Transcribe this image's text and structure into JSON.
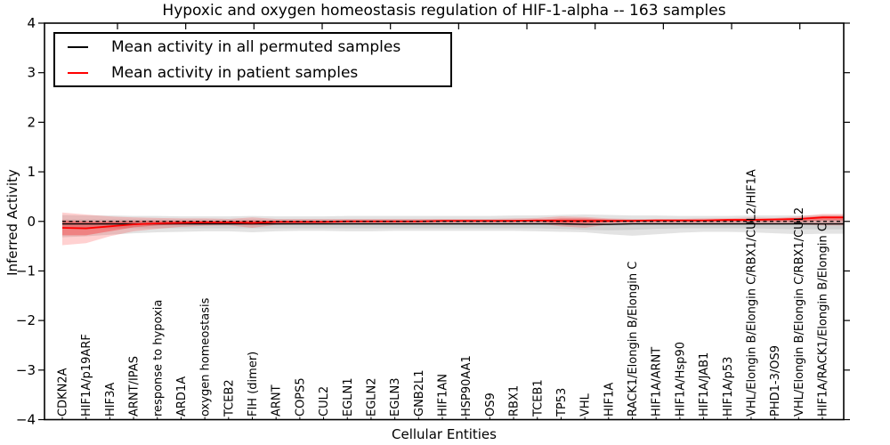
{
  "title": "Hypoxic and oxygen homeostasis regulation of HIF-1-alpha -- 163 samples",
  "legend": {
    "items": [
      {
        "label": "Mean activity in all permuted samples",
        "color": "#000000"
      },
      {
        "label": "Mean activity in patient samples",
        "color": "#ff0000"
      }
    ]
  },
  "chart_data": {
    "type": "line",
    "title": "Hypoxic and oxygen homeostasis regulation of HIF-1-alpha -- 163 samples",
    "sample_count_in_title": "163 samples",
    "xlabel": "Cellular Entities",
    "ylabel": "Inferred Activity",
    "ylim": [
      -4,
      4
    ],
    "yticks": [
      4,
      3,
      2,
      1,
      0,
      -1,
      -2,
      -3,
      -4
    ],
    "ytick_labels": [
      "4",
      "3",
      "2",
      "1",
      "0",
      "−1",
      "−2",
      "−3",
      "−4"
    ],
    "grid": false,
    "legend_position": "upper left",
    "categories": [
      "CDKN2A",
      "HIF1A/p19ARF",
      "HIF3A",
      "ARNT/IPAS",
      "response to hypoxia",
      "ARD1A",
      "oxygen homeostasis",
      "TCEB2",
      "FIH (dimer)",
      "ARNT",
      "COPS5",
      "CUL2",
      "EGLN1",
      "EGLN2",
      "EGLN3",
      "GNB2L1",
      "HIF1AN",
      "HSP90AA1",
      "OS9",
      "RBX1",
      "TCEB1",
      "TP53",
      "VHL",
      "HIF1A",
      "RACK1/Elongin B/Elongin C",
      "HIF1A/ARNT",
      "HIF1A/Hsp90",
      "HIF1A/JAB1",
      "HIF1A/p53",
      "VHL/Elongin B/Elongin C/RBX1/CUL2/HIF1A",
      "PHD1-3/OS9",
      "VHL/Elongin B/Elongin C/RBX1/CUL2",
      "HIF1A/RACK1/Elongin B/Elongin C"
    ],
    "series": [
      {
        "name": "Mean activity in all permuted samples",
        "color": "#000000",
        "style": "solid",
        "width": 1.4,
        "values": [
          -0.05,
          -0.05,
          -0.05,
          -0.05,
          -0.05,
          -0.05,
          -0.05,
          -0.05,
          -0.05,
          -0.05,
          -0.05,
          -0.05,
          -0.05,
          -0.05,
          -0.05,
          -0.05,
          -0.05,
          -0.05,
          -0.05,
          -0.05,
          -0.05,
          -0.05,
          -0.06,
          -0.06,
          -0.05,
          -0.05,
          -0.05,
          -0.05,
          -0.05,
          -0.05,
          -0.05,
          -0.05,
          -0.05
        ]
      },
      {
        "name": "Mean activity in patient samples",
        "color": "#ff0000",
        "style": "solid",
        "width": 1.8,
        "values": [
          -0.13,
          -0.14,
          -0.1,
          -0.06,
          -0.04,
          -0.03,
          -0.02,
          -0.02,
          -0.03,
          -0.01,
          -0.01,
          -0.01,
          0.0,
          0.0,
          0.0,
          0.0,
          0.01,
          0.01,
          0.01,
          0.01,
          0.02,
          0.01,
          0.01,
          0.01,
          0.01,
          0.02,
          0.02,
          0.02,
          0.03,
          0.03,
          0.04,
          0.05,
          0.08
        ]
      },
      {
        "name": "zero-reference",
        "color": "#000000",
        "style": "dashed",
        "width": 1.2,
        "values": [
          0,
          0,
          0,
          0,
          0,
          0,
          0,
          0,
          0,
          0,
          0,
          0,
          0,
          0,
          0,
          0,
          0,
          0,
          0,
          0,
          0,
          0,
          0,
          0,
          0,
          0,
          0,
          0,
          0,
          0,
          0,
          0,
          0
        ]
      }
    ],
    "bands": [
      {
        "name": "permuted-range-outer",
        "color": "rgba(128,128,128,0.22)",
        "top": [
          0.13,
          0.12,
          0.12,
          0.11,
          0.11,
          0.1,
          0.1,
          0.1,
          0.11,
          0.1,
          0.1,
          0.1,
          0.11,
          0.11,
          0.11,
          0.11,
          0.11,
          0.11,
          0.11,
          0.12,
          0.12,
          0.13,
          0.14,
          0.13,
          0.12,
          0.12,
          0.11,
          0.11,
          0.11,
          0.12,
          0.12,
          0.12,
          0.13
        ],
        "bottom": [
          -0.32,
          -0.3,
          -0.27,
          -0.24,
          -0.22,
          -0.21,
          -0.2,
          -0.2,
          -0.22,
          -0.2,
          -0.19,
          -0.19,
          -0.2,
          -0.2,
          -0.19,
          -0.19,
          -0.19,
          -0.19,
          -0.19,
          -0.19,
          -0.2,
          -0.21,
          -0.22,
          -0.26,
          -0.29,
          -0.26,
          -0.23,
          -0.21,
          -0.21,
          -0.22,
          -0.24,
          -0.26,
          -0.25
        ]
      },
      {
        "name": "permuted-range-inner",
        "color": "rgba(128,128,128,0.18)",
        "top": [
          0.04,
          0.04,
          0.04,
          0.04,
          0.04,
          0.04,
          0.04,
          0.04,
          0.04,
          0.04,
          0.04,
          0.04,
          0.04,
          0.04,
          0.04,
          0.04,
          0.04,
          0.04,
          0.04,
          0.04,
          0.04,
          0.04,
          0.04,
          0.04,
          0.04,
          0.04,
          0.04,
          0.04,
          0.04,
          0.04,
          0.04,
          0.04,
          0.04
        ],
        "bottom": [
          -0.14,
          -0.14,
          -0.14,
          -0.14,
          -0.14,
          -0.14,
          -0.14,
          -0.14,
          -0.14,
          -0.14,
          -0.14,
          -0.14,
          -0.14,
          -0.14,
          -0.14,
          -0.14,
          -0.14,
          -0.14,
          -0.14,
          -0.14,
          -0.14,
          -0.15,
          -0.17,
          -0.18,
          -0.17,
          -0.15,
          -0.14,
          -0.14,
          -0.14,
          -0.14,
          -0.15,
          -0.16,
          -0.16
        ]
      },
      {
        "name": "patient-range-outer",
        "color": "rgba(255,0,0,0.18)",
        "top": [
          0.18,
          0.14,
          0.1,
          0.08,
          0.07,
          0.06,
          0.06,
          0.05,
          0.08,
          0.05,
          0.05,
          0.05,
          0.05,
          0.05,
          0.05,
          0.05,
          0.05,
          0.05,
          0.05,
          0.06,
          0.07,
          0.1,
          0.09,
          0.06,
          0.05,
          0.05,
          0.05,
          0.06,
          0.06,
          0.08,
          0.07,
          0.1,
          0.15
        ],
        "bottom": [
          -0.48,
          -0.44,
          -0.3,
          -0.2,
          -0.15,
          -0.11,
          -0.09,
          -0.08,
          -0.13,
          -0.07,
          -0.06,
          -0.06,
          -0.06,
          -0.05,
          -0.05,
          -0.05,
          -0.04,
          -0.04,
          -0.04,
          -0.04,
          -0.04,
          -0.1,
          -0.13,
          -0.06,
          -0.05,
          -0.04,
          -0.04,
          -0.04,
          -0.04,
          -0.05,
          -0.05,
          -0.06,
          -0.08
        ]
      },
      {
        "name": "patient-range-inner",
        "color": "rgba(255,0,0,0.30)",
        "top": [
          0.02,
          0.0,
          0.0,
          0.01,
          0.01,
          0.01,
          0.01,
          0.01,
          0.02,
          0.01,
          0.01,
          0.01,
          0.02,
          0.02,
          0.02,
          0.02,
          0.02,
          0.02,
          0.02,
          0.03,
          0.03,
          0.06,
          0.06,
          0.04,
          0.03,
          0.03,
          0.03,
          0.03,
          0.04,
          0.05,
          0.05,
          0.07,
          0.11
        ],
        "bottom": [
          -0.28,
          -0.28,
          -0.2,
          -0.12,
          -0.08,
          -0.06,
          -0.05,
          -0.04,
          -0.07,
          -0.03,
          -0.03,
          -0.03,
          -0.02,
          -0.02,
          -0.02,
          -0.02,
          -0.01,
          -0.01,
          -0.01,
          -0.01,
          -0.01,
          -0.04,
          -0.05,
          -0.02,
          -0.01,
          -0.01,
          -0.01,
          -0.01,
          -0.01,
          0.0,
          0.0,
          0.0,
          0.02
        ]
      }
    ]
  }
}
